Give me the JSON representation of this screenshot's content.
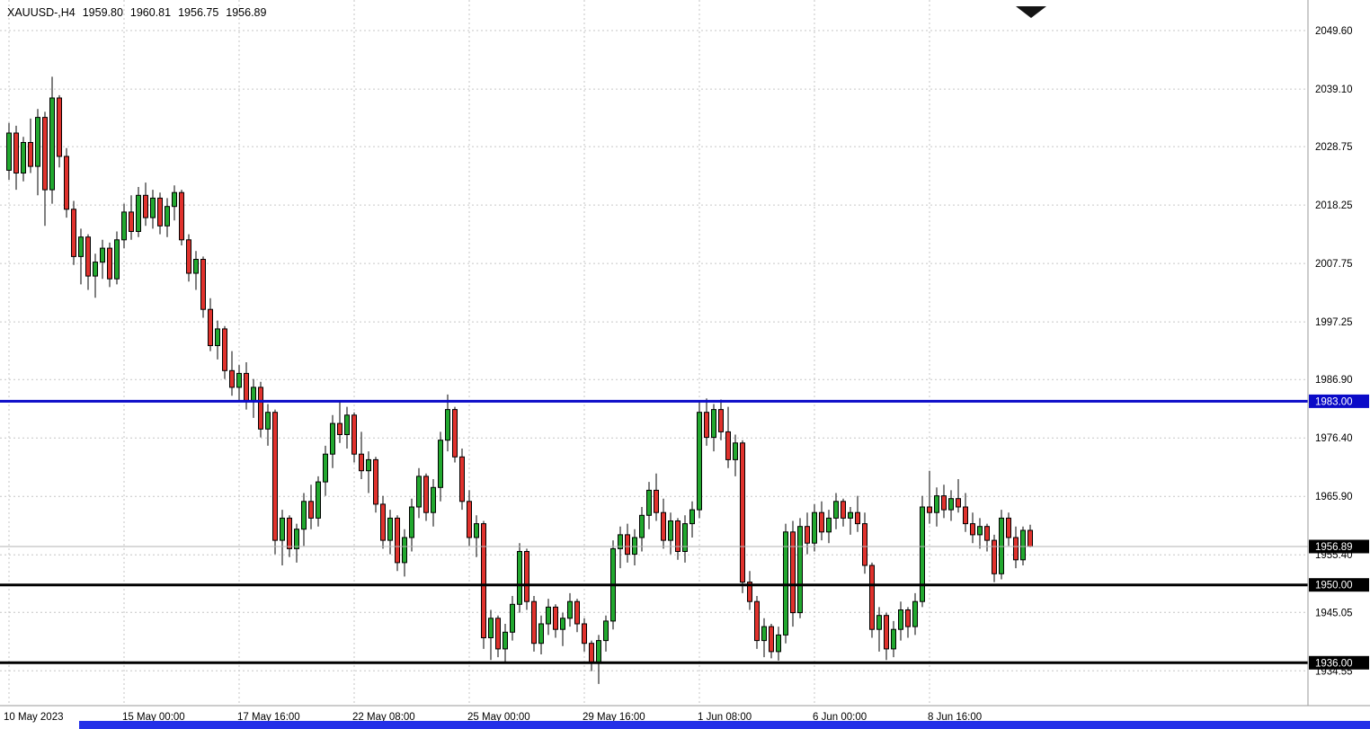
{
  "header": {
    "symbol": "XAUUSD-,H4",
    "open": "1959.80",
    "high": "1960.81",
    "low": "1956.75",
    "close": "1956.89"
  },
  "colors": {
    "background": "#FFFFFF",
    "grid": "#C6C6C6",
    "candle_up": "#22A82F",
    "candle_down": "#E0322D",
    "candle_outline": "#000000",
    "current_price_line": "#B3B3B3",
    "axis_border": "#9A9A9A",
    "axis_text": "#000000",
    "tag_text": "#FFFFFF",
    "current_price_tag": "#000000",
    "shift_marker": "#141414",
    "scrollbar_blue": "#2430E8"
  },
  "chart_data": {
    "type": "candlestick",
    "title": "XAUUSD-,H4",
    "symbol": "XAUUSD-",
    "timeframe": "H4",
    "ohlc_display": {
      "open": 1959.8,
      "high": 1960.81,
      "low": 1956.75,
      "close": 1956.89
    },
    "ylim": [
      1928.3,
      2055.1
    ],
    "grid": true,
    "legend": "none",
    "price_ticks": [
      2049.6,
      2039.1,
      2028.75,
      2018.25,
      2007.75,
      1997.25,
      1986.9,
      1976.4,
      1965.9,
      1955.4,
      1945.05,
      1934.55
    ],
    "time_ticks": [
      {
        "label": "10 May 2023",
        "candle": 0
      },
      {
        "label": "15 May 00:00",
        "candle": 16
      },
      {
        "label": "17 May 16:00",
        "candle": 32
      },
      {
        "label": "22 May 08:00",
        "candle": 48
      },
      {
        "label": "25 May 00:00",
        "candle": 64
      },
      {
        "label": "29 May 16:00",
        "candle": 80
      },
      {
        "label": "1 Jun 08:00",
        "candle": 96
      },
      {
        "label": "6 Jun 00:00",
        "candle": 112
      },
      {
        "label": "8 Jun 16:00",
        "candle": 128
      }
    ],
    "levels": [
      {
        "price": 1983.0,
        "label": "1983.00",
        "color": "#0A0AC8",
        "width": 3
      },
      {
        "price": 1950.0,
        "label": "1950.00",
        "color": "#000000",
        "width": 3
      },
      {
        "price": 1936.0,
        "label": "1936.00",
        "color": "#000000",
        "width": 3
      }
    ],
    "current_price": {
      "value": 1956.89,
      "label": "1956.89"
    },
    "candles": [
      [
        2024.5,
        2033.0,
        2022.8,
        2031.2
      ],
      [
        2031.2,
        2032.5,
        2021.0,
        2024.0
      ],
      [
        2024.0,
        2030.5,
        2022.5,
        2029.5
      ],
      [
        2029.5,
        2033.8,
        2024.0,
        2025.2
      ],
      [
        2025.2,
        2035.5,
        2020.0,
        2034.0
      ],
      [
        2034.0,
        2035.0,
        2014.5,
        2021.0
      ],
      [
        2021.0,
        2041.3,
        2018.5,
        2037.5
      ],
      [
        2037.5,
        2038.0,
        2025.0,
        2027.0
      ],
      [
        2027.0,
        2028.5,
        2016.0,
        2017.5
      ],
      [
        2017.5,
        2019.0,
        2007.5,
        2009.0
      ],
      [
        2009.0,
        2014.0,
        2004.0,
        2012.5
      ],
      [
        2012.5,
        2013.0,
        2003.0,
        2005.5
      ],
      [
        2005.5,
        2009.5,
        2001.6,
        2008.0
      ],
      [
        2008.0,
        2012.0,
        2005.0,
        2010.5
      ],
      [
        2010.5,
        2011.5,
        2003.5,
        2005.0
      ],
      [
        2005.0,
        2013.5,
        2004.0,
        2012.0
      ],
      [
        2012.0,
        2018.5,
        2010.5,
        2017.0
      ],
      [
        2017.0,
        2020.0,
        2012.0,
        2013.5
      ],
      [
        2013.5,
        2021.5,
        2012.5,
        2020.0
      ],
      [
        2020.0,
        2022.3,
        2014.5,
        2016.0
      ],
      [
        2016.0,
        2021.0,
        2014.0,
        2019.5
      ],
      [
        2019.5,
        2020.5,
        2013.0,
        2014.5
      ],
      [
        2014.5,
        2019.5,
        2012.5,
        2018.0
      ],
      [
        2018.0,
        2021.8,
        2015.5,
        2020.5
      ],
      [
        2020.5,
        2021.0,
        2011.0,
        2012.0
      ],
      [
        2012.0,
        2013.0,
        2004.5,
        2006.0
      ],
      [
        2006.0,
        2010.0,
        2003.0,
        2008.5
      ],
      [
        2008.5,
        2009.0,
        1998.0,
        1999.5
      ],
      [
        1999.5,
        2001.5,
        1992.0,
        1993.0
      ],
      [
        1993.0,
        1997.5,
        1990.5,
        1996.0
      ],
      [
        1996.0,
        1996.5,
        1987.0,
        1988.5
      ],
      [
        1988.5,
        1992.0,
        1984.0,
        1985.5
      ],
      [
        1985.5,
        1989.5,
        1983.2,
        1988.0
      ],
      [
        1988.0,
        1990.0,
        1981.5,
        1983.0
      ],
      [
        1983.0,
        1987.0,
        1980.0,
        1985.5
      ],
      [
        1985.5,
        1986.5,
        1976.5,
        1978.0
      ],
      [
        1978.0,
        1982.5,
        1975.0,
        1981.0
      ],
      [
        1981.0,
        1981.5,
        1955.5,
        1958.0
      ],
      [
        1958.0,
        1963.5,
        1953.5,
        1962.0
      ],
      [
        1962.0,
        1962.5,
        1955.0,
        1956.5
      ],
      [
        1956.5,
        1961.0,
        1954.0,
        1960.0
      ],
      [
        1960.0,
        1966.5,
        1957.0,
        1965.0
      ],
      [
        1965.0,
        1968.0,
        1960.0,
        1962.0
      ],
      [
        1962.0,
        1969.5,
        1960.5,
        1968.5
      ],
      [
        1968.5,
        1975.0,
        1966.0,
        1973.5
      ],
      [
        1973.5,
        1980.5,
        1971.0,
        1979.0
      ],
      [
        1979.0,
        1983.0,
        1975.5,
        1977.0
      ],
      [
        1977.0,
        1982.0,
        1974.5,
        1980.5
      ],
      [
        1980.5,
        1981.0,
        1972.0,
        1973.5
      ],
      [
        1973.5,
        1977.5,
        1969.0,
        1970.5
      ],
      [
        1970.5,
        1974.0,
        1966.5,
        1972.5
      ],
      [
        1972.5,
        1973.0,
        1963.0,
        1964.5
      ],
      [
        1964.5,
        1966.0,
        1956.5,
        1958.0
      ],
      [
        1958.0,
        1963.5,
        1955.5,
        1962.0
      ],
      [
        1962.0,
        1962.5,
        1952.5,
        1954.0
      ],
      [
        1954.0,
        1960.0,
        1951.5,
        1958.5
      ],
      [
        1958.5,
        1965.5,
        1956.0,
        1964.0
      ],
      [
        1964.0,
        1971.0,
        1962.0,
        1969.5
      ],
      [
        1969.5,
        1970.0,
        1961.5,
        1963.0
      ],
      [
        1963.0,
        1969.0,
        1960.5,
        1967.5
      ],
      [
        1967.5,
        1977.5,
        1965.0,
        1976.0
      ],
      [
        1976.0,
        1984.2,
        1974.0,
        1981.5
      ],
      [
        1981.5,
        1982.0,
        1972.0,
        1973.0
      ],
      [
        1973.0,
        1974.5,
        1963.5,
        1965.0
      ],
      [
        1965.0,
        1967.0,
        1957.0,
        1958.5
      ],
      [
        1958.5,
        1962.5,
        1955.0,
        1961.0
      ],
      [
        1961.0,
        1961.5,
        1938.5,
        1940.5
      ],
      [
        1940.5,
        1945.5,
        1936.5,
        1944.0
      ],
      [
        1944.0,
        1944.5,
        1937.0,
        1938.5
      ],
      [
        1938.5,
        1943.0,
        1936.2,
        1941.5
      ],
      [
        1941.5,
        1948.0,
        1940.0,
        1946.5
      ],
      [
        1946.5,
        1957.5,
        1945.0,
        1956.0
      ],
      [
        1956.0,
        1956.5,
        1945.5,
        1947.0
      ],
      [
        1947.0,
        1948.0,
        1938.0,
        1939.5
      ],
      [
        1939.5,
        1944.5,
        1937.5,
        1943.0
      ],
      [
        1943.0,
        1947.5,
        1941.0,
        1946.0
      ],
      [
        1946.0,
        1946.5,
        1940.5,
        1942.0
      ],
      [
        1942.0,
        1945.0,
        1939.0,
        1944.0
      ],
      [
        1944.0,
        1948.5,
        1942.5,
        1947.0
      ],
      [
        1947.0,
        1947.5,
        1941.5,
        1943.0
      ],
      [
        1943.0,
        1944.0,
        1938.0,
        1939.5
      ],
      [
        1939.5,
        1940.0,
        1934.5,
        1936.0
      ],
      [
        1936.0,
        1941.0,
        1932.2,
        1940.0
      ],
      [
        1940.0,
        1944.5,
        1938.0,
        1943.5
      ],
      [
        1943.5,
        1958.0,
        1942.0,
        1956.5
      ],
      [
        1956.5,
        1960.5,
        1953.0,
        1959.0
      ],
      [
        1959.0,
        1961.0,
        1954.0,
        1955.5
      ],
      [
        1955.5,
        1960.0,
        1953.5,
        1958.5
      ],
      [
        1958.5,
        1964.0,
        1956.0,
        1962.5
      ],
      [
        1962.5,
        1968.5,
        1960.0,
        1967.0
      ],
      [
        1967.0,
        1970.0,
        1961.5,
        1963.0
      ],
      [
        1963.0,
        1965.5,
        1956.5,
        1958.0
      ],
      [
        1958.0,
        1963.0,
        1955.5,
        1961.5
      ],
      [
        1961.5,
        1962.0,
        1954.5,
        1956.0
      ],
      [
        1956.0,
        1962.5,
        1954.0,
        1961.0
      ],
      [
        1961.0,
        1965.0,
        1958.5,
        1963.5
      ],
      [
        1963.5,
        1983.0,
        1962.0,
        1981.0
      ],
      [
        1981.0,
        1983.5,
        1975.0,
        1976.5
      ],
      [
        1976.5,
        1982.5,
        1974.0,
        1981.5
      ],
      [
        1981.5,
        1983.3,
        1976.0,
        1977.5
      ],
      [
        1977.5,
        1982.0,
        1971.0,
        1972.5
      ],
      [
        1972.5,
        1977.0,
        1969.5,
        1975.5
      ],
      [
        1975.5,
        1976.0,
        1948.5,
        1950.5
      ],
      [
        1950.5,
        1952.5,
        1945.5,
        1947.0
      ],
      [
        1947.0,
        1948.0,
        1938.5,
        1940.0
      ],
      [
        1940.0,
        1944.0,
        1937.0,
        1942.5
      ],
      [
        1942.5,
        1943.0,
        1936.8,
        1938.0
      ],
      [
        1938.0,
        1942.5,
        1936.4,
        1941.0
      ],
      [
        1941.0,
        1961.0,
        1939.5,
        1959.5
      ],
      [
        1959.5,
        1961.5,
        1942.5,
        1945.0
      ],
      [
        1945.0,
        1962.0,
        1944.0,
        1960.5
      ],
      [
        1960.5,
        1963.0,
        1955.5,
        1957.5
      ],
      [
        1957.5,
        1964.5,
        1956.0,
        1963.0
      ],
      [
        1963.0,
        1965.0,
        1958.0,
        1959.5
      ],
      [
        1959.5,
        1963.5,
        1957.5,
        1962.0
      ],
      [
        1962.0,
        1966.5,
        1960.0,
        1965.0
      ],
      [
        1965.0,
        1965.5,
        1960.5,
        1962.0
      ],
      [
        1962.0,
        1964.0,
        1959.0,
        1963.0
      ],
      [
        1963.0,
        1966.0,
        1959.5,
        1961.0
      ],
      [
        1961.0,
        1963.0,
        1952.0,
        1953.5
      ],
      [
        1953.5,
        1954.0,
        1940.5,
        1942.0
      ],
      [
        1942.0,
        1946.0,
        1938.0,
        1944.5
      ],
      [
        1944.5,
        1945.0,
        1936.5,
        1938.5
      ],
      [
        1938.5,
        1943.5,
        1937.0,
        1942.0
      ],
      [
        1942.0,
        1947.0,
        1940.0,
        1945.5
      ],
      [
        1945.5,
        1946.0,
        1940.5,
        1942.5
      ],
      [
        1942.5,
        1948.5,
        1941.0,
        1947.0
      ],
      [
        1947.0,
        1966.0,
        1946.0,
        1964.0
      ],
      [
        1964.0,
        1970.5,
        1961.0,
        1963.0
      ],
      [
        1963.0,
        1967.5,
        1960.5,
        1966.0
      ],
      [
        1966.0,
        1968.0,
        1962.0,
        1963.5
      ],
      [
        1963.5,
        1967.0,
        1961.5,
        1965.5
      ],
      [
        1965.5,
        1969.0,
        1963.0,
        1964.0
      ],
      [
        1964.0,
        1966.5,
        1959.5,
        1961.0
      ],
      [
        1961.0,
        1963.0,
        1957.5,
        1959.0
      ],
      [
        1959.0,
        1962.0,
        1956.5,
        1960.5
      ],
      [
        1960.5,
        1961.0,
        1956.0,
        1958.0
      ],
      [
        1958.0,
        1959.0,
        1950.5,
        1952.0
      ],
      [
        1952.0,
        1963.5,
        1951.0,
        1962.0
      ],
      [
        1962.0,
        1963.0,
        1957.0,
        1958.5
      ],
      [
        1958.5,
        1960.5,
        1953.0,
        1954.5
      ],
      [
        1954.5,
        1960.5,
        1953.5,
        1959.8
      ],
      [
        1959.8,
        1960.81,
        1956.75,
        1956.89
      ]
    ]
  }
}
